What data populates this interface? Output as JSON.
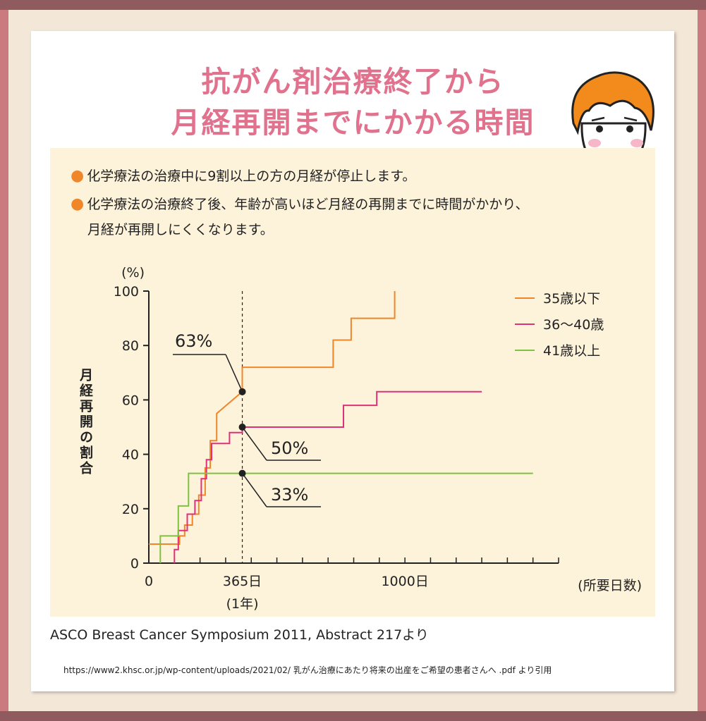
{
  "title_line1": "抗がん剤治療終了から",
  "title_line2": "月経再開までにかかる時間",
  "bullets": [
    "化学療法の治療中に9割以上の方の月経が停止します。",
    "化学療法の治療終了後、年齢が高いほど月経の再開までに時間がかかり、",
    "月経が再開しにくくなります。"
  ],
  "bullet_marker": "●",
  "source": "ASCO Breast Cancer Symposium 2011, Abstract 217より",
  "url": "https://www2.khsc.or.jp/wp-content/uploads/2021/02/ 乳がん治療にあたり将来の出産をご希望の患者さんへ .pdf より引用",
  "chart_data": {
    "type": "line",
    "y_unit": "(%)",
    "ylabel": "月経再開の割合",
    "xlabel": "(所要日数)",
    "ylim": [
      0,
      100
    ],
    "xlim": [
      0,
      1600
    ],
    "y_ticks": [
      0,
      20,
      40,
      60,
      80,
      100
    ],
    "x_ticks": [
      {
        "value": 0,
        "label": "0"
      },
      {
        "value": 365,
        "label": "365日",
        "sublabel": "(1年)"
      },
      {
        "value": 1000,
        "label": "1000日"
      }
    ],
    "reference_line_x": 365,
    "series": [
      {
        "name": "35歳以下",
        "color": "#f0862a",
        "x": [
          0,
          120,
          120,
          140,
          140,
          170,
          170,
          195,
          195,
          220,
          220,
          240,
          240,
          265,
          265,
          365,
          365,
          720,
          720,
          790,
          790,
          960,
          960
        ],
        "y": [
          7,
          7,
          10,
          10,
          14,
          14,
          18,
          18,
          25,
          25,
          35,
          35,
          45,
          45,
          55,
          63,
          72,
          72,
          82,
          82,
          90,
          90,
          100
        ]
      },
      {
        "name": "36〜40歳",
        "color": "#e0307a",
        "x": [
          100,
          100,
          115,
          115,
          150,
          150,
          180,
          180,
          205,
          205,
          225,
          225,
          245,
          245,
          315,
          315,
          365,
          365,
          760,
          760,
          890,
          890,
          1300
        ],
        "y": [
          0,
          5,
          5,
          12,
          12,
          18,
          18,
          23,
          23,
          31,
          31,
          38,
          38,
          44,
          44,
          48,
          48,
          50,
          50,
          58,
          58,
          63,
          63
        ],
        "_note": "steps"
      },
      {
        "name": "41歳以上",
        "color": "#7fc241",
        "x": [
          45,
          45,
          115,
          115,
          155,
          155,
          365,
          1500
        ],
        "y": [
          0,
          10,
          10,
          21,
          21,
          33,
          33,
          33
        ]
      }
    ],
    "annotations": [
      {
        "x": 365,
        "y": 63,
        "label": "63%"
      },
      {
        "x": 365,
        "y": 50,
        "label": "50%"
      },
      {
        "x": 365,
        "y": 33,
        "label": "33%"
      }
    ],
    "legend_position": "top-right",
    "grid": false
  }
}
